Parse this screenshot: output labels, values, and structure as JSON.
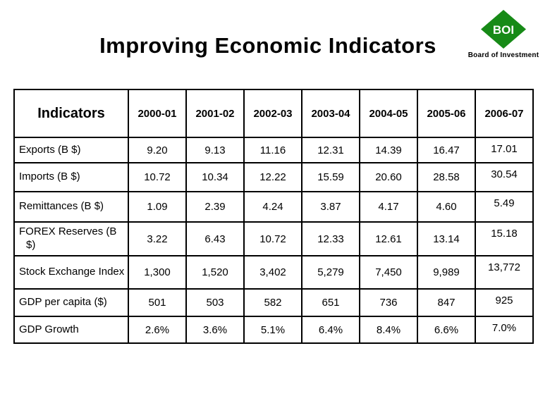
{
  "slide": {
    "title": "Improving Economic Indicators"
  },
  "logo": {
    "acronym": "BOI",
    "caption": "Board of Investment",
    "diamond_color": "#178a17",
    "acronym_color": "#ffffff"
  },
  "chart_data": {
    "type": "table",
    "title": "Improving Economic Indicators",
    "columns": [
      "Indicators",
      "2000-01",
      "2001-02",
      "2002-03",
      "2003-04",
      "2004-05",
      "2005-06",
      "2006-07"
    ],
    "rows": [
      {
        "label": "Exports (B $)",
        "values": [
          "9.20",
          "9.13",
          "11.16",
          "12.31",
          "14.39",
          "16.47",
          "17.01"
        ]
      },
      {
        "label": "Imports (B $)",
        "values": [
          "10.72",
          "10.34",
          "12.22",
          "15.59",
          "20.60",
          "28.58",
          "30.54"
        ]
      },
      {
        "label": "Remittances (B $)",
        "values": [
          "1.09",
          "2.39",
          "4.24",
          "3.87",
          "4.17",
          "4.60",
          "5.49"
        ]
      },
      {
        "label": "FOREX Reserves (B $)",
        "values": [
          "3.22",
          "6.43",
          "10.72",
          "12.33",
          "12.61",
          "13.14",
          "15.18"
        ]
      },
      {
        "label": "Stock Exchange Index",
        "values": [
          "1,300",
          "1,520",
          "3,402",
          "5,279",
          "7,450",
          "9,989",
          "13,772"
        ]
      },
      {
        "label": "GDP per capita ($)",
        "values": [
          "501",
          "503",
          "582",
          "651",
          "736",
          "847",
          "925"
        ]
      },
      {
        "label": "GDP Growth",
        "values": [
          "2.6%",
          "3.6%",
          "5.1%",
          "6.4%",
          "8.4%",
          "6.6%",
          "7.0%"
        ]
      }
    ]
  }
}
